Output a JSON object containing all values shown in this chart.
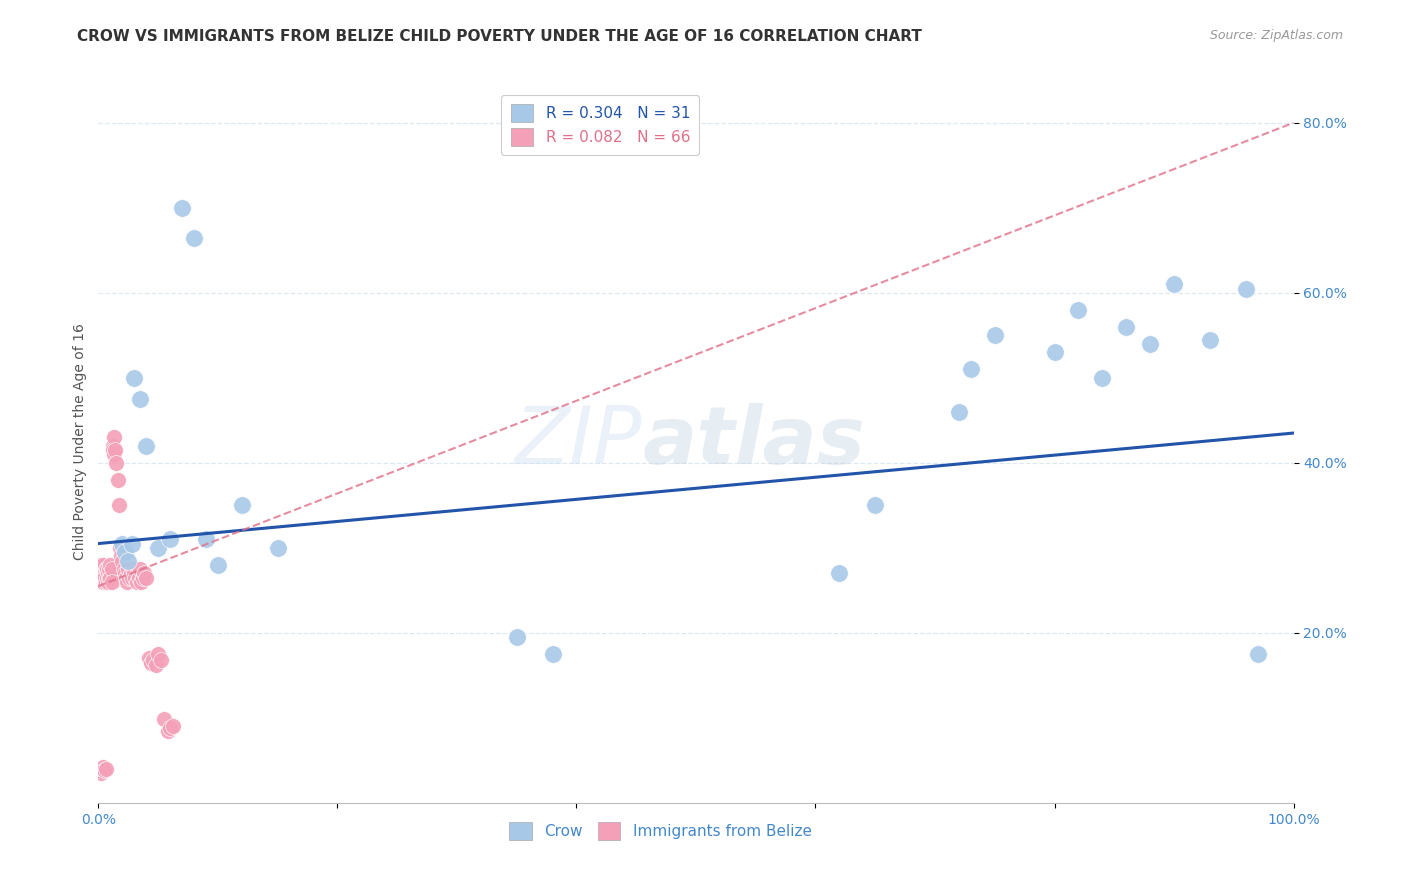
{
  "title": "CROW VS IMMIGRANTS FROM BELIZE CHILD POVERTY UNDER THE AGE OF 16 CORRELATION CHART",
  "source": "Source: ZipAtlas.com",
  "ylabel": "Child Poverty Under the Age of 16",
  "crow_R": 0.304,
  "crow_N": 31,
  "belize_R": 0.082,
  "belize_N": 66,
  "crow_color": "#a8c8e8",
  "belize_color": "#f4a0b8",
  "crow_line_color": "#2255aa",
  "belize_line_color": "#e07088",
  "background": "#ffffff",
  "crow_x": [
    0.02,
    0.022,
    0.025,
    0.028,
    0.03,
    0.035,
    0.04,
    0.05,
    0.06,
    0.07,
    0.08,
    0.09,
    0.1,
    0.12,
    0.15,
    0.35,
    0.38,
    0.62,
    0.65,
    0.72,
    0.73,
    0.75,
    0.8,
    0.82,
    0.84,
    0.86,
    0.88,
    0.9,
    0.93,
    0.96,
    0.97
  ],
  "crow_y": [
    0.305,
    0.295,
    0.285,
    0.305,
    0.5,
    0.475,
    0.42,
    0.3,
    0.31,
    0.7,
    0.665,
    0.31,
    0.28,
    0.35,
    0.3,
    0.195,
    0.175,
    0.27,
    0.35,
    0.46,
    0.51,
    0.55,
    0.53,
    0.58,
    0.5,
    0.56,
    0.54,
    0.61,
    0.545,
    0.605,
    0.175
  ],
  "belize_x": [
    0.001,
    0.002,
    0.003,
    0.003,
    0.004,
    0.004,
    0.005,
    0.005,
    0.006,
    0.006,
    0.007,
    0.007,
    0.008,
    0.008,
    0.009,
    0.009,
    0.01,
    0.01,
    0.011,
    0.011,
    0.012,
    0.012,
    0.013,
    0.013,
    0.014,
    0.015,
    0.016,
    0.017,
    0.018,
    0.019,
    0.02,
    0.021,
    0.022,
    0.023,
    0.024,
    0.025,
    0.026,
    0.027,
    0.028,
    0.029,
    0.03,
    0.031,
    0.032,
    0.033,
    0.034,
    0.035,
    0.036,
    0.037,
    0.038,
    0.04,
    0.042,
    0.044,
    0.046,
    0.048,
    0.05,
    0.052,
    0.055,
    0.058,
    0.06,
    0.062,
    0.001,
    0.002,
    0.003,
    0.004,
    0.005,
    0.006
  ],
  "belize_y": [
    0.28,
    0.27,
    0.265,
    0.275,
    0.26,
    0.28,
    0.27,
    0.265,
    0.26,
    0.275,
    0.265,
    0.275,
    0.26,
    0.27,
    0.265,
    0.275,
    0.28,
    0.265,
    0.275,
    0.26,
    0.42,
    0.415,
    0.43,
    0.41,
    0.415,
    0.4,
    0.38,
    0.35,
    0.3,
    0.29,
    0.285,
    0.275,
    0.27,
    0.265,
    0.26,
    0.275,
    0.265,
    0.27,
    0.265,
    0.275,
    0.27,
    0.265,
    0.26,
    0.27,
    0.265,
    0.275,
    0.26,
    0.265,
    0.27,
    0.265,
    0.17,
    0.165,
    0.168,
    0.162,
    0.175,
    0.168,
    0.098,
    0.085,
    0.088,
    0.09,
    0.038,
    0.035,
    0.04,
    0.042,
    0.038,
    0.04
  ],
  "xlim": [
    0.0,
    1.0
  ],
  "ylim": [
    0.0,
    0.85
  ],
  "xticks": [
    0.0,
    0.2,
    0.4,
    0.6,
    0.8,
    1.0
  ],
  "xtick_labels": [
    "0.0%",
    "",
    "",
    "",
    "",
    "100.0%"
  ],
  "yticks_right": [
    0.2,
    0.4,
    0.6,
    0.8
  ],
  "ytick_labels_right": [
    "20.0%",
    "40.0%",
    "60.0%",
    "80.0%"
  ],
  "watermark_part1": "ZIP",
  "watermark_part2": "atlas",
  "grid_color": "#dde8f0",
  "title_fontsize": 11,
  "axis_label_fontsize": 10,
  "tick_fontsize": 10,
  "legend_fontsize": 11,
  "crow_regression": [
    0.305,
    0.435
  ],
  "belize_regression_start_x": 0.0,
  "belize_regression_start_y": 0.255,
  "belize_regression_end_x": 1.0,
  "belize_regression_end_y": 0.8
}
